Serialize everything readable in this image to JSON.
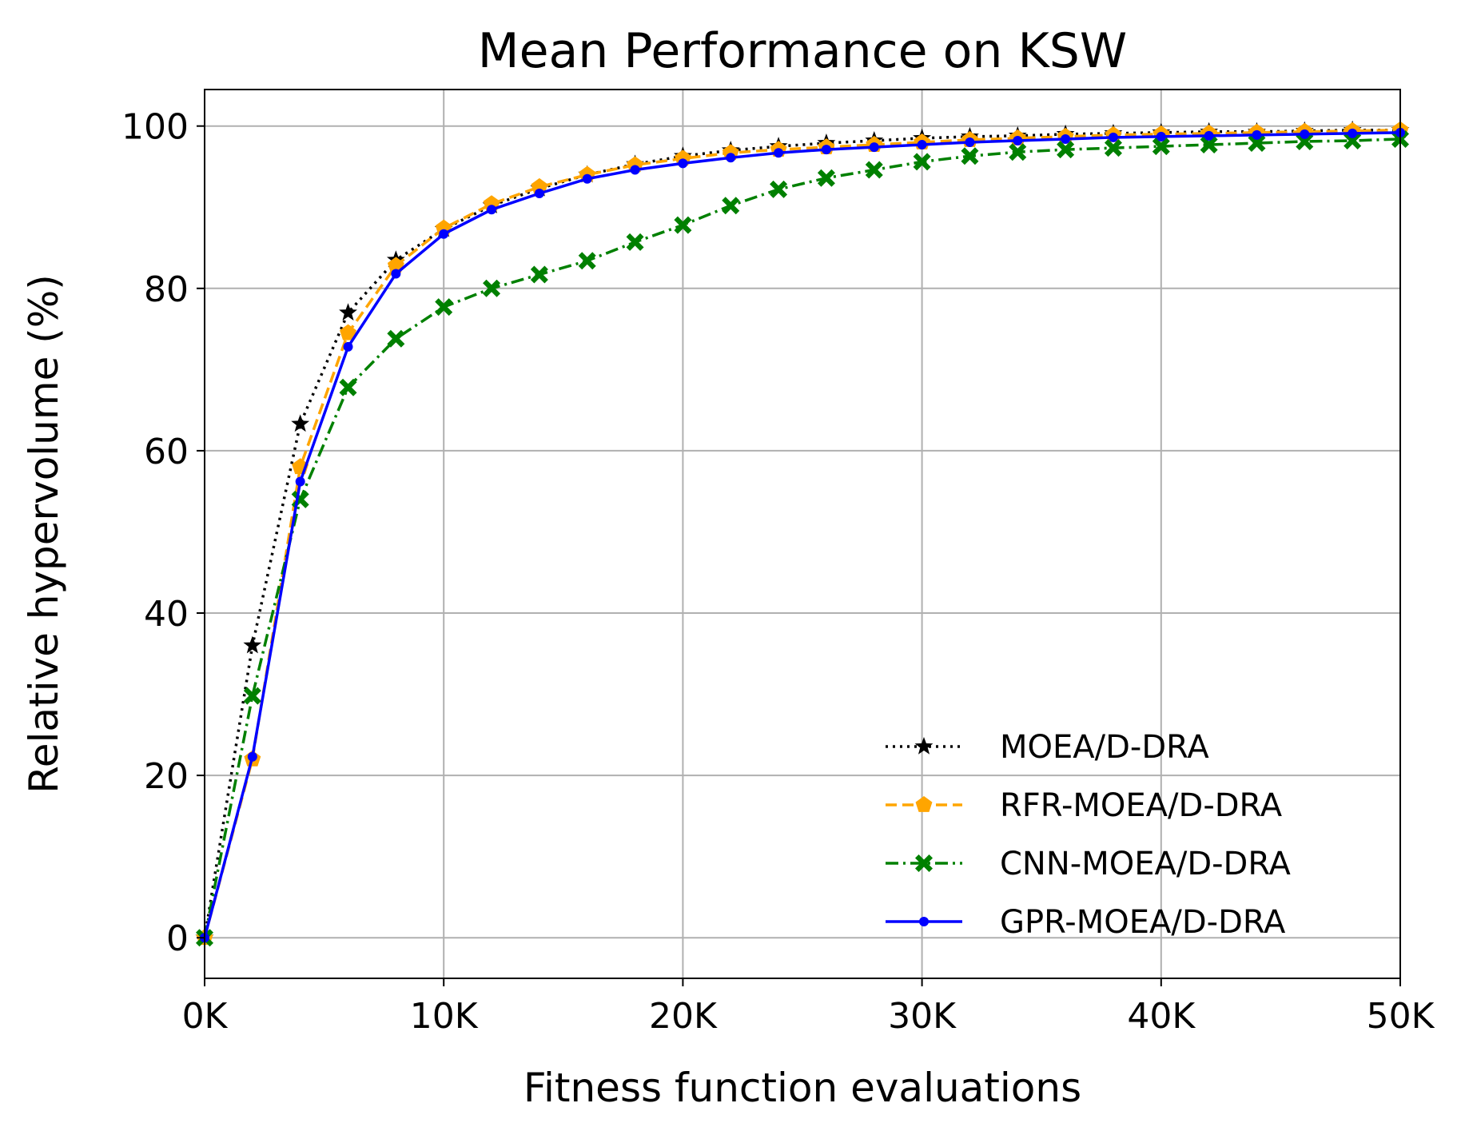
{
  "chart_data": {
    "type": "line",
    "title": "Mean Performance on KSW",
    "xlabel": "Fitness function evaluations",
    "ylabel": "Relative hypervolume (%)",
    "xlim": [
      0,
      50000
    ],
    "ylim": [
      -5,
      104.5
    ],
    "grid": true,
    "legend_position": "bottom-right",
    "x_ticks": [
      0,
      10000,
      20000,
      30000,
      40000,
      50000
    ],
    "x_tick_labels": [
      "0K",
      "10K",
      "20K",
      "30K",
      "40K",
      "50K"
    ],
    "y_ticks": [
      0,
      20,
      40,
      60,
      80,
      100
    ],
    "y_tick_labels": [
      "0",
      "20",
      "40",
      "60",
      "80",
      "100"
    ],
    "x": [
      0,
      2000,
      4000,
      6000,
      8000,
      10000,
      12000,
      14000,
      16000,
      18000,
      20000,
      22000,
      24000,
      26000,
      28000,
      30000,
      32000,
      34000,
      36000,
      38000,
      40000,
      42000,
      44000,
      46000,
      48000,
      50000
    ],
    "series": [
      {
        "name": "MOEA/D-DRA",
        "color": "#000000",
        "linestyle": "dotted",
        "marker": "star",
        "values": [
          0,
          36,
          63.3,
          77,
          83.5,
          87.3,
          90.2,
          92.3,
          94,
          95.3,
          96.3,
          97,
          97.5,
          97.9,
          98.2,
          98.5,
          98.7,
          98.8,
          99,
          99.1,
          99.2,
          99.3,
          99.3,
          99.4,
          99.5,
          99.5
        ]
      },
      {
        "name": "RFR-MOEA/D-DRA",
        "color": "#FFA500",
        "linestyle": "dashed",
        "marker": "pentagon",
        "values": [
          0,
          22,
          58,
          74.5,
          82.8,
          87.4,
          90.4,
          92.5,
          94,
          95.2,
          96,
          96.7,
          97.1,
          97.4,
          97.7,
          98,
          98.3,
          98.5,
          98.7,
          98.9,
          99,
          99.1,
          99.2,
          99.3,
          99.4,
          99.5
        ]
      },
      {
        "name": "CNN-MOEA/D-DRA",
        "color": "#008000",
        "linestyle": "dashdot",
        "marker": "x-filled",
        "values": [
          0,
          29.8,
          54,
          67.8,
          73.8,
          77.7,
          80,
          81.7,
          83.4,
          85.7,
          87.8,
          90.2,
          92.2,
          93.6,
          94.6,
          95.6,
          96.3,
          96.8,
          97.1,
          97.3,
          97.5,
          97.7,
          97.9,
          98.1,
          98.2,
          98.4
        ]
      },
      {
        "name": "GPR-MOEA/D-DRA",
        "color": "#0000FF",
        "linestyle": "solid",
        "marker": "circle",
        "values": [
          0,
          22.3,
          56.2,
          72.8,
          81.8,
          86.7,
          89.7,
          91.7,
          93.5,
          94.6,
          95.4,
          96.1,
          96.7,
          97.1,
          97.4,
          97.7,
          98,
          98.2,
          98.4,
          98.6,
          98.7,
          98.8,
          98.9,
          99,
          99.1,
          99.2
        ]
      }
    ]
  }
}
